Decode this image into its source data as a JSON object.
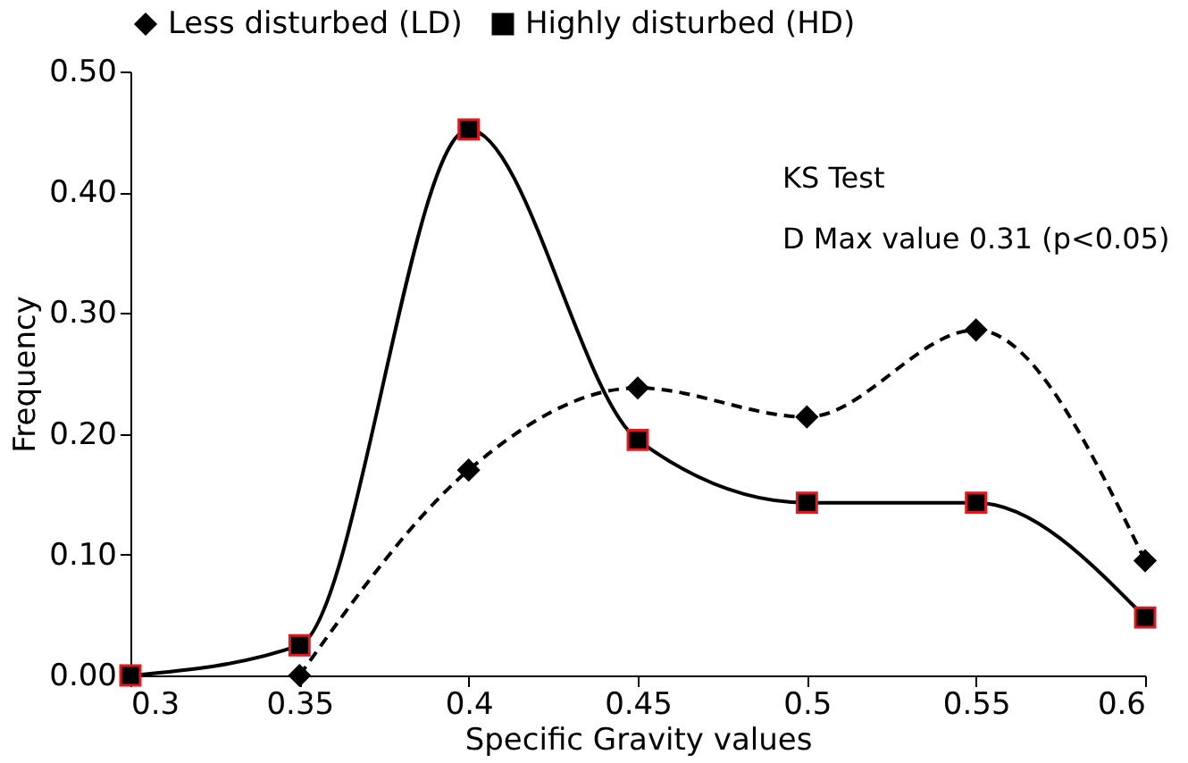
{
  "chart_data": {
    "type": "line",
    "xlabel": "Specific Gravity values",
    "ylabel": "Frequency",
    "xlim": [
      0.3,
      0.6
    ],
    "xticks": [
      0.3,
      0.35,
      0.4,
      0.45,
      0.5,
      0.55,
      0.6
    ],
    "ylim": [
      0,
      0.5
    ],
    "yticks": [
      {
        "value": 0,
        "label": "0.00"
      },
      {
        "value": 0.1,
        "label": "0.10"
      },
      {
        "value": 0.2,
        "label": "0.20"
      },
      {
        "value": 0.3,
        "label": "0.30"
      },
      {
        "value": 0.4,
        "label": "0.40"
      },
      {
        "value": 0.5,
        "label": "0.50"
      }
    ],
    "grid": false,
    "legend": "top",
    "annotations": [
      "KS Test",
      "D Max value 0.31 (p<0.05)"
    ],
    "series": [
      {
        "name": "Less disturbed (LD)",
        "color": "#000000",
        "marker": "diamond",
        "line_style": "dashed",
        "x": [
          0.35,
          0.4,
          0.45,
          0.5,
          0.55,
          0.6
        ],
        "values": [
          0.0,
          0.17,
          0.238,
          0.214,
          0.286,
          0.095
        ]
      },
      {
        "name": "Highly disturbed (HD)",
        "color": "#000000",
        "marker": "square",
        "line_style": "solid",
        "x": [
          0.3,
          0.35,
          0.4,
          0.45,
          0.5,
          0.55,
          0.6
        ],
        "values": [
          0.0,
          0.025,
          0.452,
          0.195,
          0.143,
          0.143,
          0.048
        ]
      }
    ]
  }
}
